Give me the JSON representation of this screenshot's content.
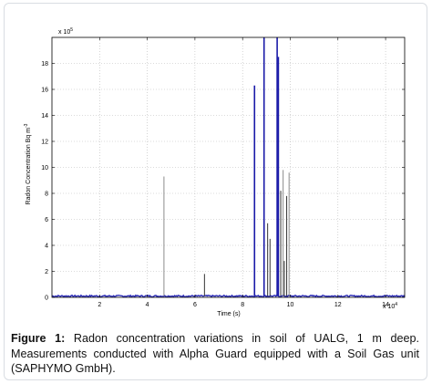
{
  "chart_data": {
    "type": "line",
    "title": "",
    "xlabel": "Time (s)",
    "ylabel": "Radon Concentration Bq m",
    "ylabel_superscript": "-3",
    "x_exponent_label": "x 10",
    "x_exponent": "4",
    "y_exponent_label": "x 10",
    "y_exponent": "5",
    "xlim": [
      0,
      14.8
    ],
    "ylim": [
      0,
      20
    ],
    "x_ticks": [
      2,
      4,
      6,
      8,
      10,
      12,
      14
    ],
    "y_ticks": [
      0,
      2,
      4,
      6,
      8,
      10,
      12,
      14,
      16,
      18
    ],
    "x_tick_labels": [
      "2",
      "4",
      "6",
      "8",
      "10",
      "12",
      "14"
    ],
    "y_tick_labels": [
      "0",
      "2",
      "4",
      "6",
      "8",
      "10",
      "12",
      "14",
      "16",
      "18"
    ],
    "grid": true,
    "baseline": 0.1,
    "series_color": "#2b2bb8",
    "spikes": [
      {
        "x": 4.7,
        "y": 9.3
      },
      {
        "x": 6.4,
        "y": 1.8
      },
      {
        "x": 8.5,
        "y": 16.3
      },
      {
        "x": 8.9,
        "y": 20
      },
      {
        "x": 9.05,
        "y": 5.7
      },
      {
        "x": 9.15,
        "y": 4.5
      },
      {
        "x": 9.45,
        "y": 20
      },
      {
        "x": 9.5,
        "y": 18.5
      },
      {
        "x": 9.6,
        "y": 8.2
      },
      {
        "x": 9.7,
        "y": 9.8
      },
      {
        "x": 9.75,
        "y": 2.8
      },
      {
        "x": 9.85,
        "y": 7.8
      },
      {
        "x": 9.95,
        "y": 9.6
      }
    ]
  },
  "caption": {
    "label": "Figure 1:",
    "text": " Radon concentration variations in soil of UALG, 1 m deep. Measurements conducted with Alpha Guard equipped with a Soil Gas unit (SAPHYMO GmbH)."
  }
}
